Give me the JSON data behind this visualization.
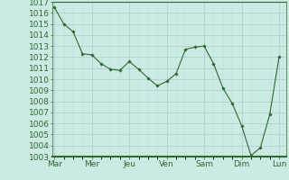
{
  "x_labels": [
    "Mar",
    "Mer",
    "Jeu",
    "Ven",
    "Sam",
    "Dim",
    "Lun"
  ],
  "x_ticks_pos": [
    0,
    8,
    16,
    24,
    32,
    40,
    48
  ],
  "ylim": [
    1003,
    1017
  ],
  "yticks": [
    1003,
    1004,
    1005,
    1006,
    1007,
    1008,
    1009,
    1010,
    1011,
    1012,
    1013,
    1014,
    1015,
    1016,
    1017
  ],
  "data_x": [
    0,
    2,
    4,
    6,
    8,
    10,
    12,
    14,
    16,
    18,
    20,
    22,
    24,
    26,
    28,
    30,
    32,
    34,
    36,
    38,
    40,
    42,
    44,
    46,
    48
  ],
  "data_y": [
    1016.5,
    1015.0,
    1014.3,
    1012.3,
    1012.2,
    1011.4,
    1010.9,
    1010.8,
    1011.6,
    1010.9,
    1010.1,
    1009.4,
    1009.8,
    1010.5,
    1012.7,
    1012.9,
    1013.0,
    1011.4,
    1009.2,
    1007.8,
    1005.8,
    1003.1,
    1003.8,
    1006.8,
    1012.0
  ],
  "line_color": "#2d6a2d",
  "marker_color": "#2d6a2d",
  "bg_color": "#cceae4",
  "grid_major_color": "#aacccc",
  "grid_minor_color": "#c0dcda",
  "axis_color": "#2d6a2d",
  "tick_label_color": "#2d6a2d",
  "font_size": 6.5,
  "xlim": [
    -0.5,
    49.5
  ]
}
